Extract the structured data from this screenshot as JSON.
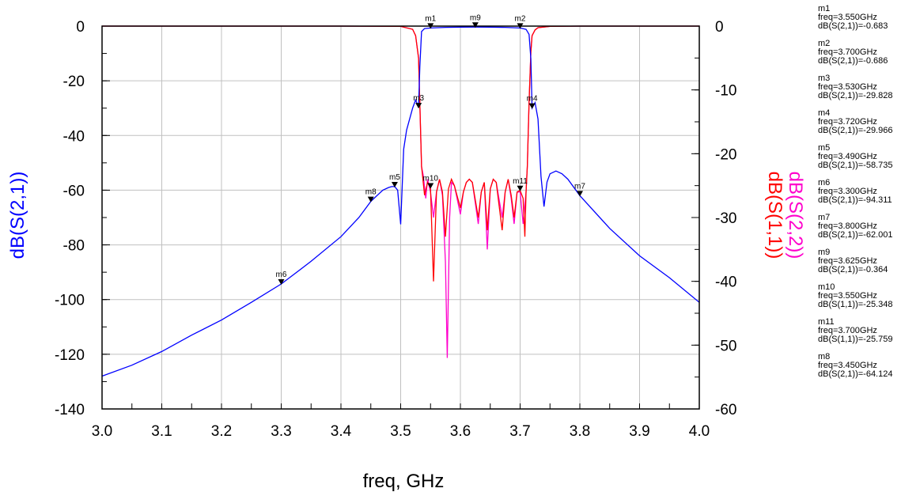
{
  "chart_data": {
    "type": "line",
    "xlabel": "freq, GHz",
    "ylabel_left": "dB(S(2,1))",
    "ylabels_right": [
      "dB(S(2,2))",
      "dB(S(1,1))"
    ],
    "xlim": [
      3.0,
      4.0
    ],
    "ylim_left": [
      -140,
      0
    ],
    "ylim_right": [
      -60,
      0
    ],
    "grid": true,
    "x_ticks": [
      "3.0",
      "3.1",
      "3.2",
      "3.3",
      "3.4",
      "3.5",
      "3.6",
      "3.7",
      "3.8",
      "3.9",
      "4.0"
    ],
    "y_left_ticks": [
      "0",
      "-20",
      "-40",
      "-60",
      "-80",
      "-100",
      "-120",
      "-140"
    ],
    "y_right_ticks": [
      "0",
      "-10",
      "-20",
      "-30",
      "-40",
      "-50",
      "-60"
    ],
    "series": [
      {
        "name": "dB(S(2,1))",
        "axis": "left",
        "color": "#0000ff",
        "x": [
          3.0,
          3.05,
          3.1,
          3.15,
          3.2,
          3.25,
          3.3,
          3.35,
          3.4,
          3.43,
          3.45,
          3.47,
          3.48,
          3.485,
          3.49,
          3.495,
          3.5,
          3.505,
          3.51,
          3.52,
          3.525,
          3.53,
          3.532,
          3.535,
          3.54,
          3.55,
          3.575,
          3.6,
          3.625,
          3.65,
          3.675,
          3.7,
          3.71,
          3.715,
          3.718,
          3.72,
          3.725,
          3.73,
          3.735,
          3.74,
          3.745,
          3.75,
          3.76,
          3.77,
          3.78,
          3.8,
          3.85,
          3.9,
          3.95,
          4.0
        ],
        "y": [
          -128,
          -124,
          -119,
          -113,
          -107.5,
          -101,
          -94.3,
          -86,
          -77,
          -70,
          -64.1,
          -60,
          -59,
          -58.7,
          -58.7,
          -60,
          -72.5,
          -45,
          -38,
          -30,
          -27,
          -29.8,
          -15,
          -2,
          -0.9,
          -0.68,
          -0.45,
          -0.37,
          -0.36,
          -0.38,
          -0.45,
          -0.69,
          -1.2,
          -3,
          -12,
          -29.97,
          -28,
          -34,
          -55,
          -66,
          -57,
          -54,
          -53,
          -54,
          -56,
          -62,
          -74,
          -84,
          -92,
          -101
        ]
      },
      {
        "name": "dB(S(1,1))",
        "axis": "right",
        "color": "#ff0000",
        "x": [
          3.0,
          3.4,
          3.5,
          3.52,
          3.525,
          3.53,
          3.532,
          3.535,
          3.54,
          3.545,
          3.55,
          3.555,
          3.56,
          3.565,
          3.57,
          3.575,
          3.58,
          3.585,
          3.59,
          3.6,
          3.605,
          3.61,
          3.615,
          3.62,
          3.63,
          3.635,
          3.64,
          3.645,
          3.65,
          3.655,
          3.66,
          3.67,
          3.675,
          3.68,
          3.685,
          3.69,
          3.695,
          3.7,
          3.705,
          3.708,
          3.71,
          3.712,
          3.715,
          3.718,
          3.72,
          3.725,
          3.73,
          3.75,
          3.8,
          4.0
        ],
        "y": [
          0,
          0,
          -0.05,
          -0.5,
          -1.5,
          -5,
          -12,
          -22,
          -26.5,
          -24.5,
          -25.35,
          -40,
          -26,
          -24,
          -26,
          -33,
          -25.5,
          -24,
          -25,
          -28.5,
          -26,
          -24.5,
          -24,
          -24.5,
          -30,
          -26,
          -24.5,
          -32,
          -25.5,
          -24,
          -24.5,
          -32,
          -26,
          -24,
          -26.5,
          -30,
          -26,
          -25.76,
          -27,
          -33,
          -26,
          -22,
          -12,
          -4,
          -1.5,
          -0.6,
          -0.25,
          -0.05,
          0,
          0
        ]
      },
      {
        "name": "dB(S(2,2))",
        "axis": "right",
        "color": "#ff00cc",
        "x": [
          3.0,
          3.4,
          3.5,
          3.52,
          3.525,
          3.53,
          3.532,
          3.535,
          3.538,
          3.542,
          3.545,
          3.55,
          3.555,
          3.56,
          3.565,
          3.57,
          3.575,
          3.578,
          3.582,
          3.585,
          3.59,
          3.6,
          3.605,
          3.61,
          3.615,
          3.62,
          3.63,
          3.635,
          3.64,
          3.645,
          3.65,
          3.655,
          3.66,
          3.67,
          3.675,
          3.68,
          3.685,
          3.69,
          3.695,
          3.7,
          3.705,
          3.71,
          3.712,
          3.715,
          3.718,
          3.72,
          3.725,
          3.73,
          3.75,
          3.8,
          4.0
        ],
        "y": [
          0,
          0,
          -0.05,
          -0.5,
          -1.5,
          -5,
          -12,
          -22,
          -23.5,
          -27,
          -24,
          -26,
          -30,
          -26,
          -24,
          -26.5,
          -37,
          -52,
          -30,
          -24.5,
          -25,
          -29.5,
          -26,
          -24.5,
          -24,
          -24.5,
          -31,
          -26,
          -24.5,
          -35,
          -25.5,
          -24,
          -24.5,
          -30,
          -26,
          -24,
          -27,
          -31,
          -26,
          -26,
          -31,
          -26,
          -22,
          -12,
          -4,
          -1.5,
          -0.6,
          -0.25,
          -0.05,
          0,
          0
        ]
      }
    ],
    "markers": [
      {
        "name": "m1",
        "freq": "3.550GHz",
        "expr": "dB(S(2,1))",
        "value": "-0.683",
        "x": 3.55,
        "y": -0.683,
        "axis": "left"
      },
      {
        "name": "m2",
        "freq": "3.700GHz",
        "expr": "dB(S(2,1))",
        "value": "-0.686",
        "x": 3.7,
        "y": -0.686,
        "axis": "left"
      },
      {
        "name": "m3",
        "freq": "3.530GHz",
        "expr": "dB(S(2,1))",
        "value": "-29.828",
        "x": 3.53,
        "y": -29.828,
        "axis": "left"
      },
      {
        "name": "m4",
        "freq": "3.720GHz",
        "expr": "dB(S(2,1))",
        "value": "-29.966",
        "x": 3.72,
        "y": -29.966,
        "axis": "left"
      },
      {
        "name": "m5",
        "freq": "3.490GHz",
        "expr": "dB(S(2,1))",
        "value": "-58.735",
        "x": 3.49,
        "y": -58.735,
        "axis": "left"
      },
      {
        "name": "m6",
        "freq": "3.300GHz",
        "expr": "dB(S(2,1))",
        "value": "-94.311",
        "x": 3.3,
        "y": -94.311,
        "axis": "left"
      },
      {
        "name": "m7",
        "freq": "3.800GHz",
        "expr": "dB(S(2,1))",
        "value": "-62.001",
        "x": 3.8,
        "y": -62.001,
        "axis": "left"
      },
      {
        "name": "m9",
        "freq": "3.625GHz",
        "expr": "dB(S(2,1))",
        "value": "-0.364",
        "x": 3.625,
        "y": -0.364,
        "axis": "left"
      },
      {
        "name": "m10",
        "freq": "3.550GHz",
        "expr": "dB(S(1,1))",
        "value": "-25.348",
        "x": 3.55,
        "y": -25.348,
        "axis": "right"
      },
      {
        "name": "m11",
        "freq": "3.700GHz",
        "expr": "dB(S(1,1))",
        "value": "-25.759",
        "x": 3.7,
        "y": -25.759,
        "axis": "right"
      },
      {
        "name": "m8",
        "freq": "3.450GHz",
        "expr": "dB(S(2,1))",
        "value": "-64.124",
        "x": 3.45,
        "y": -64.124,
        "axis": "left"
      }
    ]
  }
}
